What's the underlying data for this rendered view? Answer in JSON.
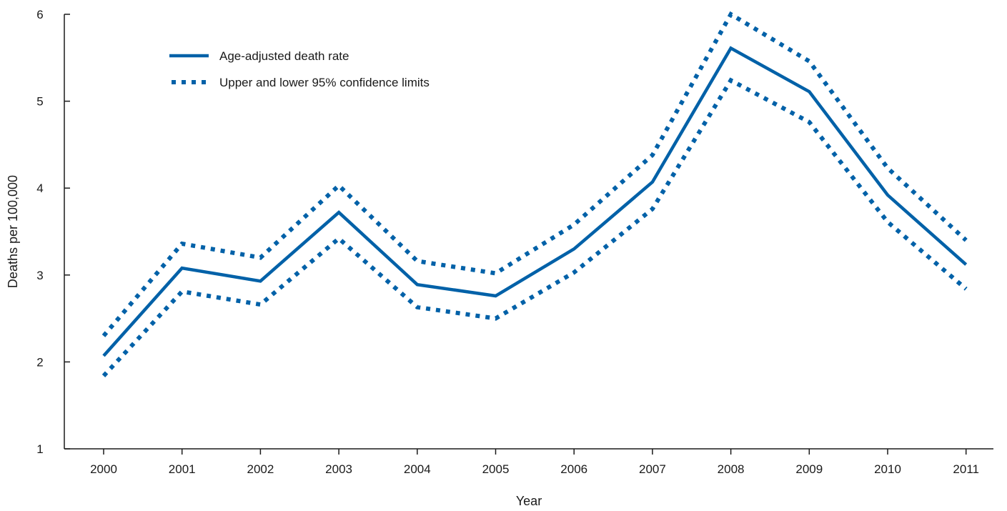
{
  "chart_data": {
    "type": "line",
    "xlabel": "Year",
    "ylabel": "Deaths per 100,000",
    "ylim": [
      1,
      6
    ],
    "yticks": [
      1,
      2,
      3,
      4,
      5,
      6
    ],
    "categories": [
      "2000",
      "2001",
      "2002",
      "2003",
      "2004",
      "2005",
      "2006",
      "2007",
      "2008",
      "2009",
      "2010",
      "2011"
    ],
    "legend_position": "top-left",
    "color": "#0061a8",
    "series": [
      {
        "name": "Age-adjusted death rate",
        "style": "solid",
        "values": [
          2.07,
          3.08,
          2.93,
          3.72,
          2.89,
          2.76,
          3.3,
          4.07,
          5.61,
          5.11,
          3.92,
          3.12
        ]
      },
      {
        "name": "Upper and lower 95% confidence limits",
        "style": "dotted",
        "role": "upper",
        "values": [
          2.3,
          3.36,
          3.2,
          4.03,
          3.16,
          3.02,
          3.58,
          4.38,
          6.0,
          5.46,
          4.23,
          3.4
        ]
      },
      {
        "name": "Upper and lower 95% confidence limits",
        "style": "dotted",
        "role": "lower",
        "values": [
          1.84,
          2.81,
          2.66,
          3.42,
          2.63,
          2.5,
          3.03,
          3.76,
          5.24,
          4.76,
          3.61,
          2.84
        ]
      }
    ]
  }
}
